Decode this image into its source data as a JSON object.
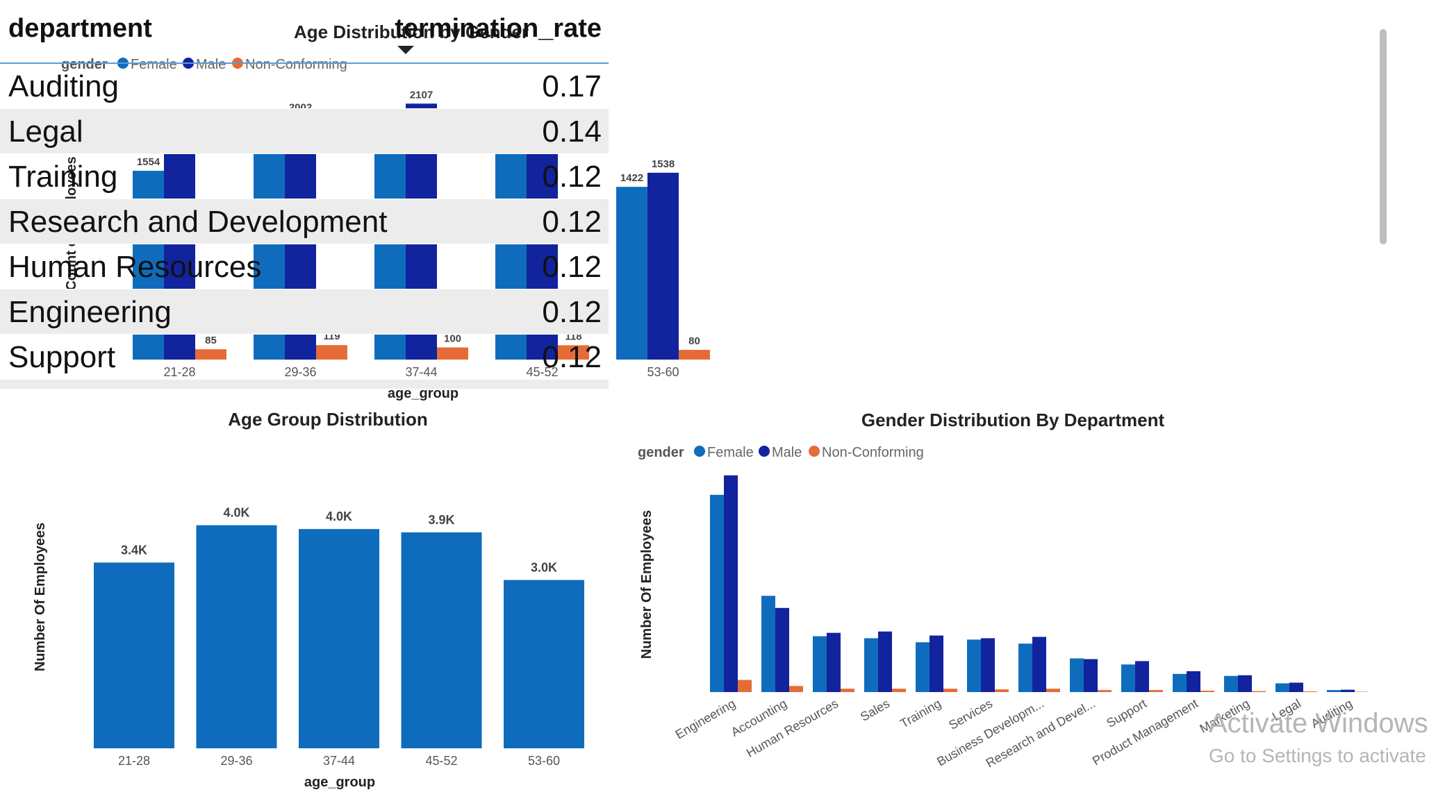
{
  "colors": {
    "female": "#0f6cbd",
    "male": "#12239e",
    "nonconforming": "#e66c37",
    "single": "#0f6cbd"
  },
  "age_gender_chart": {
    "title": "Age Distribution by Gender",
    "legend_title": "gender",
    "ylabel": "Count of Employees",
    "xlabel": "age_group"
  },
  "age_group_chart": {
    "title": "Age Group Distribution",
    "ylabel": "Number Of Employees",
    "xlabel": "age_group"
  },
  "dept_gender_chart": {
    "title": "Gender Distribution By Department",
    "legend_title": "gender",
    "ylabel": "Number Of Employees"
  },
  "table": {
    "columns": [
      "department",
      "termination_rate"
    ],
    "rows": [
      {
        "department": "Auditing",
        "termination_rate": "0.17"
      },
      {
        "department": "Legal",
        "termination_rate": "0.14"
      },
      {
        "department": "Training",
        "termination_rate": "0.12"
      },
      {
        "department": "Research and Development",
        "termination_rate": "0.12"
      },
      {
        "department": "Human Resources",
        "termination_rate": "0.12"
      },
      {
        "department": "Engineering",
        "termination_rate": "0.12"
      },
      {
        "department": "Support",
        "termination_rate": "0.12"
      }
    ]
  },
  "watermark": {
    "line1": "Activate Windows",
    "line2": "Go to Settings to activate"
  },
  "chart_data": [
    {
      "type": "bar",
      "title": "Age Distribution by Gender",
      "xlabel": "age_group",
      "ylabel": "Count of Employees",
      "legend_placement": "top-left",
      "categories": [
        "21-28",
        "29-36",
        "37-44",
        "45-52",
        "53-60"
      ],
      "series": [
        {
          "name": "Female",
          "values": [
            1554,
            1908,
            1753,
            1818,
            1422
          ]
        },
        {
          "name": "Male",
          "values": [
            1716,
            2002,
            2107,
            1965,
            1538
          ]
        },
        {
          "name": "Non-Conforming",
          "values": [
            85,
            119,
            100,
            118,
            80
          ]
        }
      ],
      "ylim": [
        0,
        2200
      ],
      "grid": false
    },
    {
      "type": "bar",
      "title": "Age Group Distribution",
      "xlabel": "age_group",
      "ylabel": "Number Of Employees",
      "categories": [
        "21-28",
        "29-36",
        "37-44",
        "45-52",
        "53-60"
      ],
      "values": [
        3355,
        4029,
        3960,
        3901,
        3040
      ],
      "data_labels": [
        "3.4K",
        "4.0K",
        "4.0K",
        "3.9K",
        "3.0K"
      ],
      "ylim": [
        0,
        4200
      ],
      "grid": false
    },
    {
      "type": "bar",
      "title": "Gender Distribution By Department",
      "ylabel": "Number Of Employees",
      "legend_placement": "top-left",
      "categories": [
        "Engineering",
        "Accounting",
        "Human Resources",
        "Sales",
        "Training",
        "Services",
        "Business Developm...",
        "Research and Devel...",
        "Support",
        "Product Management",
        "Marketing",
        "Legal",
        "Auditing"
      ],
      "series": [
        {
          "name": "Female",
          "values": [
            2930,
            1430,
            830,
            800,
            740,
            780,
            720,
            500,
            410,
            270,
            240,
            130,
            30
          ]
        },
        {
          "name": "Male",
          "values": [
            3220,
            1250,
            880,
            900,
            840,
            800,
            820,
            490,
            460,
            310,
            250,
            140,
            35
          ]
        },
        {
          "name": "Non-Conforming",
          "values": [
            180,
            90,
            50,
            50,
            50,
            40,
            50,
            30,
            30,
            20,
            15,
            10,
            5
          ]
        }
      ],
      "ylim": [
        0,
        3300
      ],
      "grid": false
    }
  ]
}
